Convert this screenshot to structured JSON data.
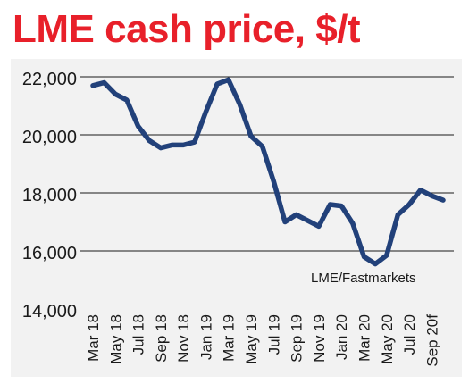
{
  "colors": {
    "title": "#e8202a",
    "panel_bg": "#f2f2f2",
    "line": "#22417a",
    "grid": "#1a1a1a",
    "text": "#1a1a1a"
  },
  "chart_data": {
    "type": "line",
    "title": "LME cash price, $/t",
    "xlabel": "",
    "ylabel": "",
    "ylim": [
      14000,
      22000
    ],
    "yticks": [
      14000,
      16000,
      18000,
      20000,
      22000
    ],
    "ytick_labels": [
      "14,000",
      "16,000",
      "18,000",
      "20,000",
      "22,000"
    ],
    "grid": true,
    "x_tick_labels": [
      "Mar 18",
      "May 18",
      "Jul 18",
      "Sep 18",
      "Nov 18",
      "Jan 19",
      "Mar 19",
      "May 19",
      "Jul 19",
      "Sep 19",
      "Nov 19",
      "Jan 20",
      "Mar 20",
      "May 20",
      "Jul 20",
      "Sep 20f"
    ],
    "x": [
      "Mar 18",
      "Apr 18",
      "May 18",
      "Jun 18",
      "Jul 18",
      "Aug 18",
      "Sep 18",
      "Oct 18",
      "Nov 18",
      "Dec 18",
      "Jan 19",
      "Feb 19",
      "Mar 19",
      "Apr 19",
      "May 19",
      "Jun 19",
      "Jul 19",
      "Aug 19",
      "Sep 19",
      "Oct 19",
      "Nov 19",
      "Dec 19",
      "Jan 20",
      "Feb 20",
      "Mar 20",
      "Apr 20",
      "May 20",
      "Jun 20",
      "Jul 20",
      "Aug 20",
      "Sep 20f",
      "Oct 20"
    ],
    "series": [
      {
        "name": "",
        "values": [
          21700,
          21800,
          21400,
          21200,
          20300,
          19800,
          19550,
          19650,
          19650,
          19750,
          20800,
          21750,
          21900,
          21050,
          19950,
          19600,
          18400,
          17000,
          17250,
          17050,
          16850,
          17600,
          17550,
          16950,
          15800,
          15550,
          15850,
          17250,
          17600,
          18100,
          17900,
          17750
        ]
      }
    ],
    "source_note": "LME/Fastmarkets"
  }
}
